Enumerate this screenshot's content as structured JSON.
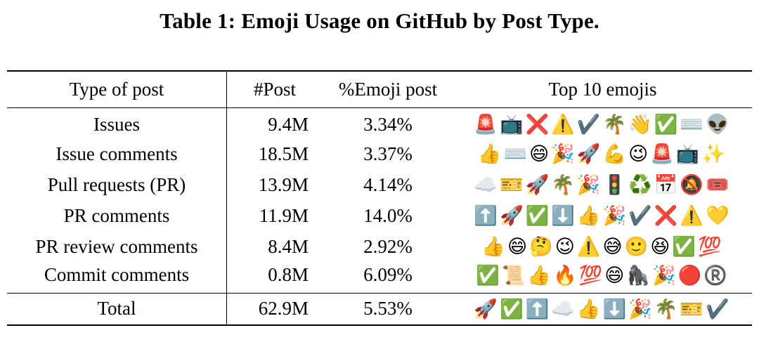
{
  "caption": "Table 1: Emoji Usage on GitHub by Post Type.",
  "table": {
    "headers": [
      "Type of post",
      "#Post",
      "%Emoji post",
      "Top 10 emojis"
    ],
    "rows": [
      {
        "type": "Issues",
        "posts": "9.4M",
        "pct": "3.34%",
        "emojis": "🚨📺❌⚠️✔️🌴👋✅⌨️👽"
      },
      {
        "type": "Issue comments",
        "posts": "18.5M",
        "pct": "3.37%",
        "emojis": "👍⌨️😄🎉🚀💪😉🚨📺✨"
      },
      {
        "type": "Pull requests (PR)",
        "posts": "13.9M",
        "pct": "4.14%",
        "emojis": "☁️🎫🚀🌴🎉🚦♻️📅🔕🎟️"
      },
      {
        "type": "PR comments",
        "posts": "11.9M",
        "pct": "14.0%",
        "emojis": "⬆️🚀✅⬇️👍🎉✔️❌⚠️💛"
      },
      {
        "type": "PR review comments",
        "posts": "8.4M",
        "pct": "2.92%",
        "emojis": "👍😄🤔😉⚠️😅🙂😆✅💯"
      },
      {
        "type": "Commit comments",
        "posts": "0.8M",
        "pct": "6.09%",
        "emojis": "✅📜👍🔥💯😄🦍🎉🔴®️"
      }
    ],
    "total": {
      "type": "Total",
      "posts": "62.9M",
      "pct": "5.53%",
      "emojis": "🚀✅⬆️☁️👍⬇️🎉🌴🎫✔️"
    }
  }
}
